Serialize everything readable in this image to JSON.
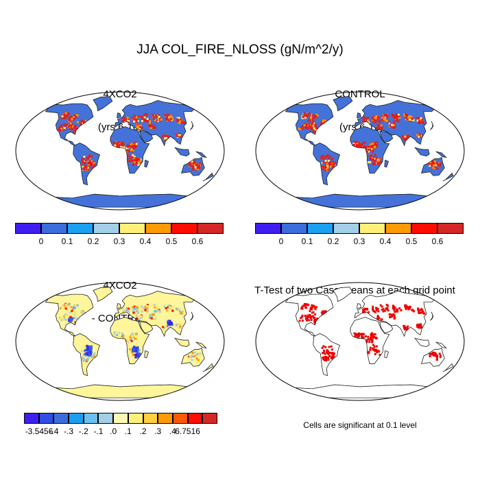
{
  "main_title": "JJA COL_FIRE_NLOSS (gN/m^2/y)",
  "panels": [
    {
      "id": "4xco2",
      "title_line1": "4XCO2",
      "title_line2": "(yrs 6-10)",
      "land_color": "#4472d9",
      "hot_level": "high"
    },
    {
      "id": "control",
      "title_line1": "CONTROL",
      "title_line2": " (yrs 6-10)",
      "land_color": "#4472d9",
      "hot_level": "high"
    },
    {
      "id": "difference",
      "title_line1": "4XCO2",
      "title_line2": "- CONTROL",
      "land_color": "#fff59a",
      "hot_level": "diff"
    },
    {
      "id": "ttest",
      "title_line1": "T-Test of two Case means at each grid point",
      "title_line2": "",
      "land_color": "#ffffff",
      "hot_level": "sig"
    }
  ],
  "colorbar_top": {
    "colors": [
      "#3f1ff0",
      "#3d6ddc",
      "#1aa0f0",
      "#a4cfe8",
      "#fff07a",
      "#ff9a00",
      "#ff0d00",
      "#d42828"
    ],
    "labels": [
      "0",
      "0.1",
      "0.2",
      "0.3",
      "0.4",
      "0.5",
      "0.6"
    ]
  },
  "colorbar_diff": {
    "colors": [
      "#3f1ff0",
      "#2f4ee6",
      "#3d6ddc",
      "#1aa0f0",
      "#6cc0ee",
      "#a4cfe8",
      "#fff7b4",
      "#fff07a",
      "#ffd040",
      "#ff9a00",
      "#ff5a00",
      "#ff0d00",
      "#d42828"
    ],
    "labels": [
      "-3.5456",
      "-.4",
      "-.3",
      "-.2",
      "-.1",
      ".0",
      ".1",
      ".2",
      ".3",
      ".4",
      "6.7516"
    ]
  },
  "significance_note": "Cells are significant at 0.1 level",
  "significance_color": "#ee0000"
}
